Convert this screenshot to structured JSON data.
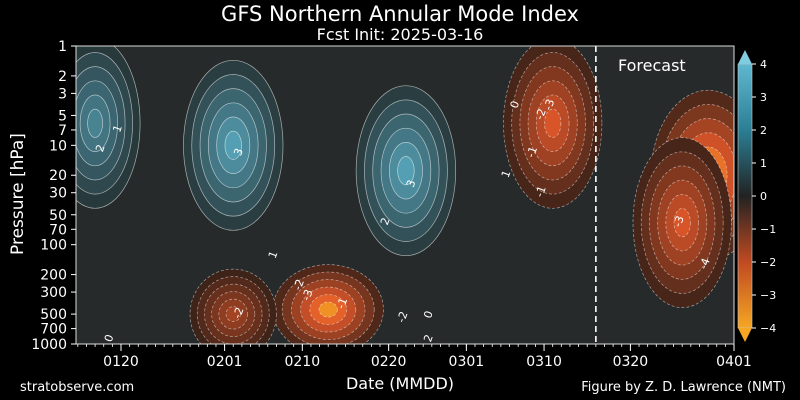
{
  "chart_data": {
    "type": "heatmap",
    "title": "GFS Northern Annular Mode Index",
    "subtitle": "Fcst Init: 2025-03-16",
    "xlabel": "Date (MMDD)",
    "ylabel": "Pressure [hPa]",
    "x_ticks": [
      "0120",
      "0201",
      "0210",
      "0220",
      "0301",
      "0310",
      "0320",
      "0401"
    ],
    "y_ticks": [
      1,
      2,
      3,
      5,
      7,
      10,
      20,
      30,
      50,
      70,
      100,
      200,
      300,
      500,
      700,
      1000
    ],
    "y_scale": "log",
    "y_inverted": true,
    "colorbar_ticks": [
      4,
      3,
      2,
      1,
      0,
      -1,
      -2,
      -3,
      -4
    ],
    "colorbar_range": [
      -4,
      4
    ],
    "colormap": {
      "positive": "#2b8ba3",
      "zero": "#222222",
      "negative": "#e2582a",
      "extreme_negative": "#f5a623"
    },
    "forecast_label": "Forecast",
    "forecast_start": "0316",
    "contour_labels": [
      "-4",
      "-3",
      "-3",
      "-3",
      "-2",
      "-2",
      "-2",
      "-2",
      "-1",
      "-1",
      "-1",
      "0",
      "0",
      "0",
      "1",
      "1",
      "1",
      "2",
      "2",
      "2",
      "3",
      "3"
    ],
    "anomaly_centers": [
      {
        "date": "0117",
        "pressure": 6,
        "value": 2.5
      },
      {
        "date": "0202",
        "pressure": 10,
        "value": 3.3
      },
      {
        "date": "0222",
        "pressure": 18,
        "value": 3.3
      },
      {
        "date": "0213",
        "pressure": 450,
        "value": -4.2
      },
      {
        "date": "0202",
        "pressure": 500,
        "value": -2.2
      },
      {
        "date": "0311",
        "pressure": 6,
        "value": -3.2
      },
      {
        "date": "0329",
        "pressure": 20,
        "value": -4.5
      },
      {
        "date": "0326",
        "pressure": 60,
        "value": -3.2
      }
    ]
  },
  "footer": {
    "left": "stratobserve.com",
    "right": "Figure by Z. D. Lawrence (NMT)"
  }
}
